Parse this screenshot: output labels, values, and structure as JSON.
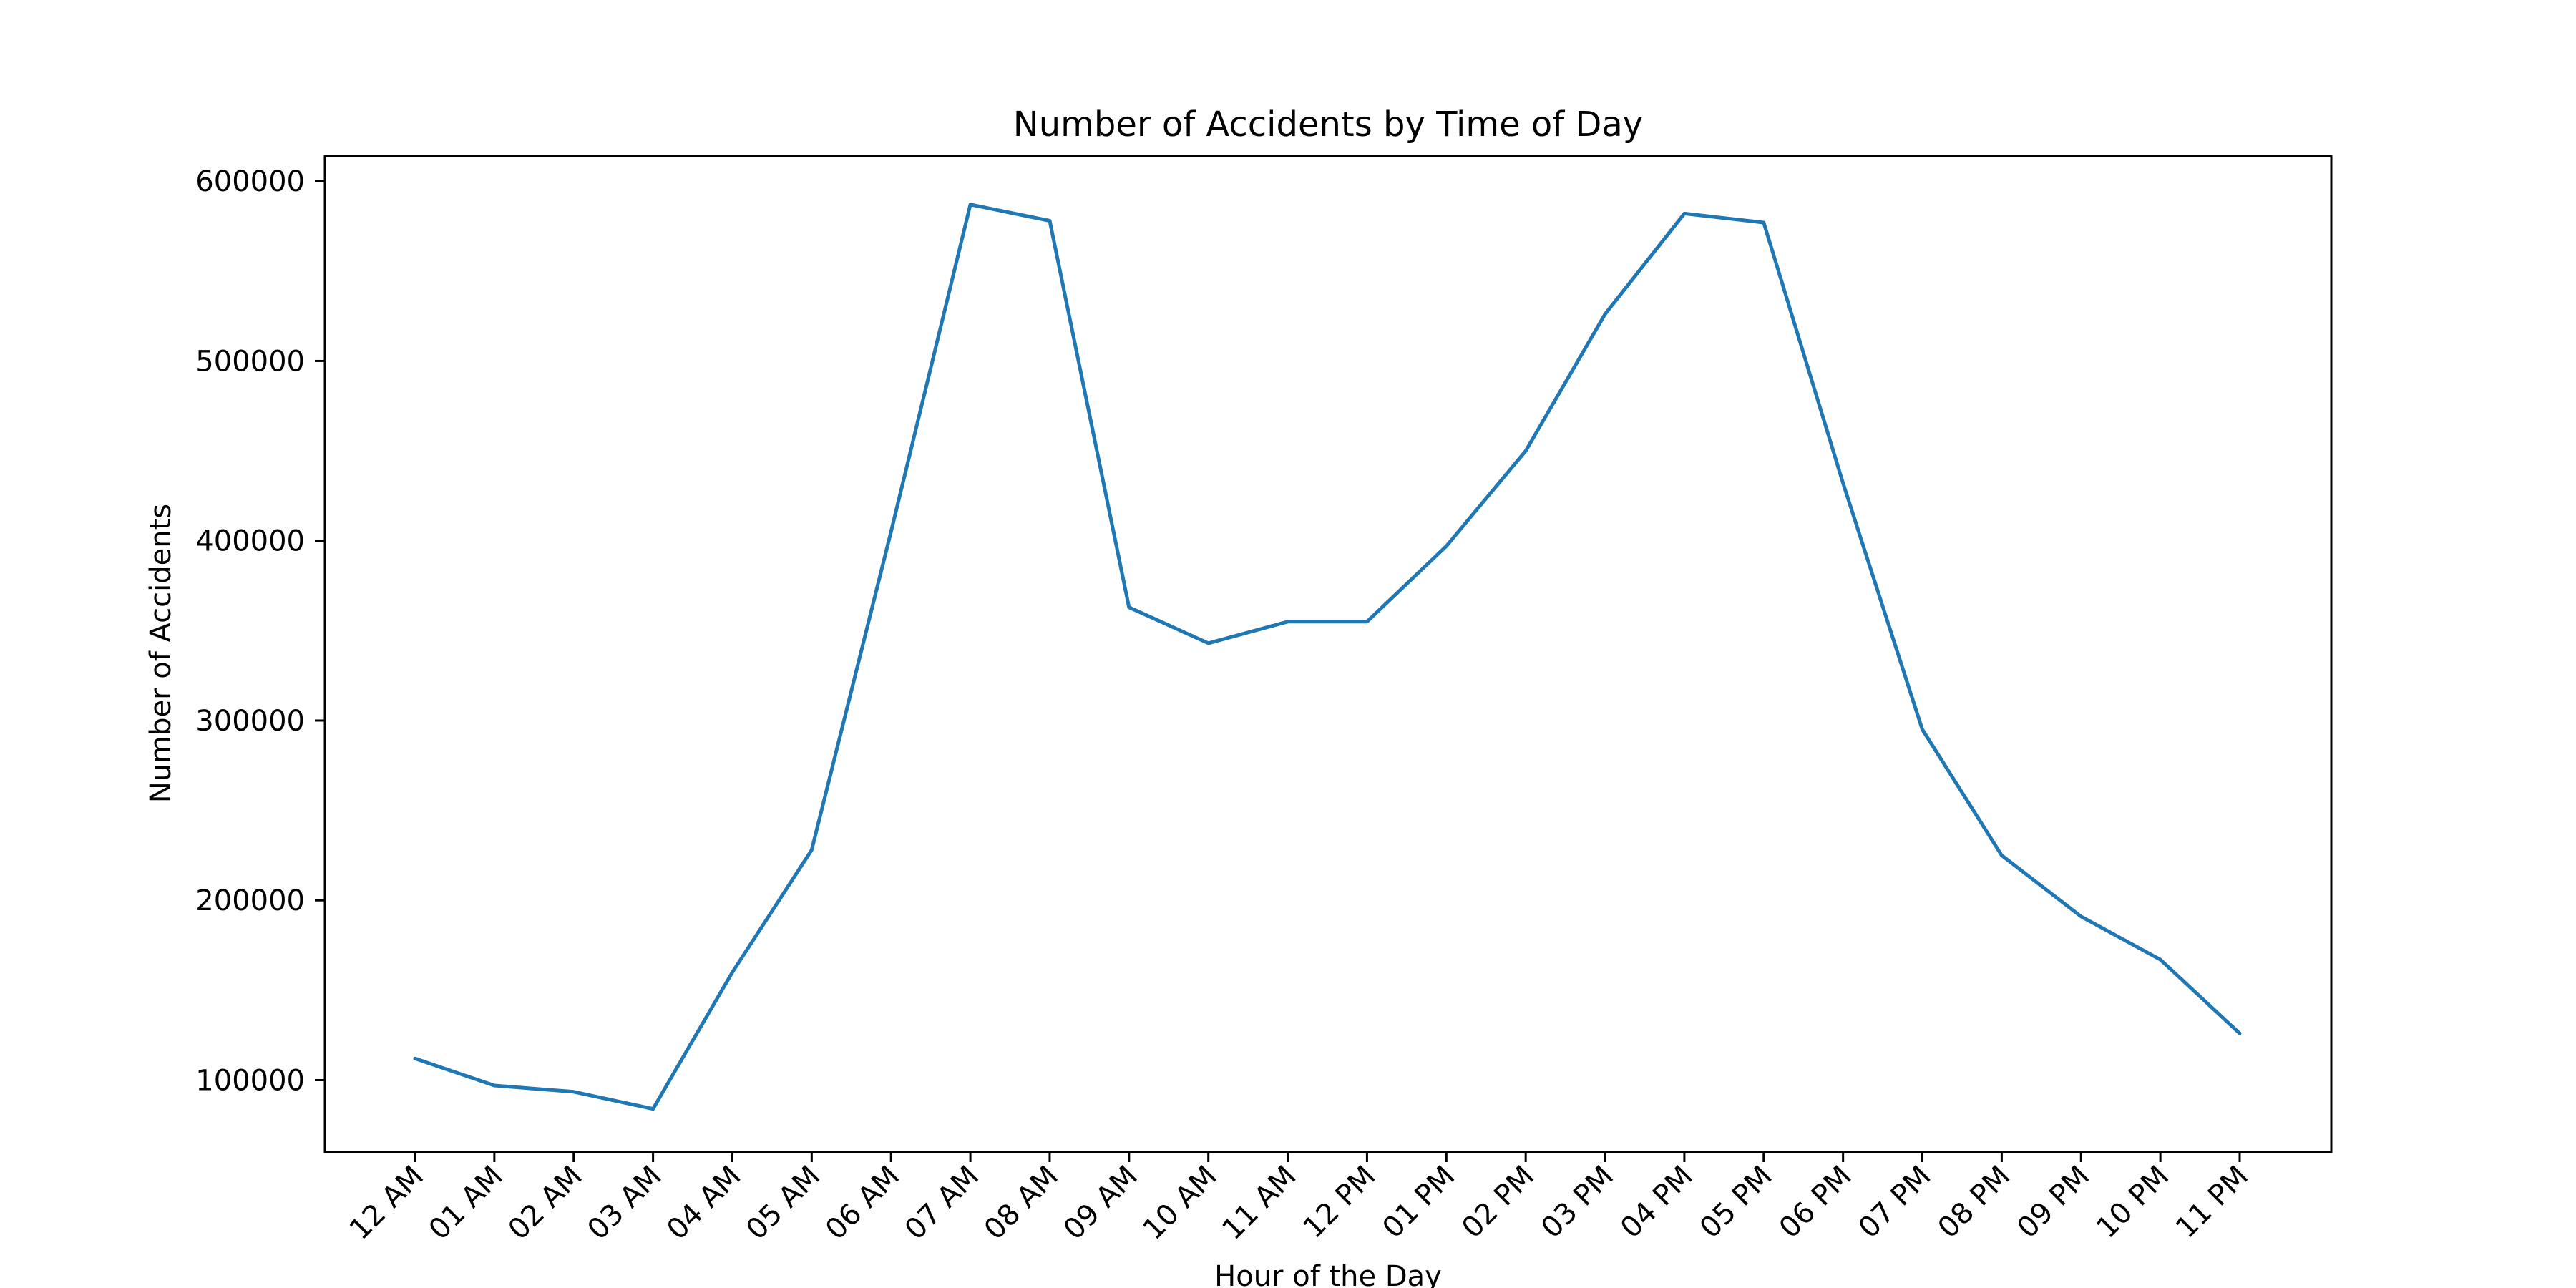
{
  "chart_data": {
    "type": "line",
    "title": "Number of Accidents by Time of Day",
    "xlabel": "Hour of the Day",
    "ylabel": "Number of Accidents",
    "categories": [
      "12 AM",
      "01 AM",
      "02 AM",
      "03 AM",
      "04 AM",
      "05 AM",
      "06 AM",
      "07 AM",
      "08 AM",
      "09 AM",
      "10 AM",
      "11 AM",
      "12 PM",
      "01 PM",
      "02 PM",
      "03 PM",
      "04 PM",
      "05 PM",
      "06 PM",
      "07 PM",
      "08 PM",
      "09 PM",
      "10 PM",
      "11 PM"
    ],
    "series": [
      {
        "values": [
          112000,
          97000,
          93500,
          84000,
          160000,
          228000,
          405000,
          587000,
          578000,
          363000,
          343000,
          355000,
          355000,
          397000,
          450000,
          526000,
          582000,
          577000,
          432000,
          295000,
          225000,
          191000,
          167000,
          126000
        ],
        "color": "#1f77b4"
      }
    ],
    "yticks": [
      100000,
      200000,
      300000,
      400000,
      500000,
      600000
    ],
    "ylim": [
      60000,
      614000
    ],
    "grid": false,
    "legend": "none"
  }
}
